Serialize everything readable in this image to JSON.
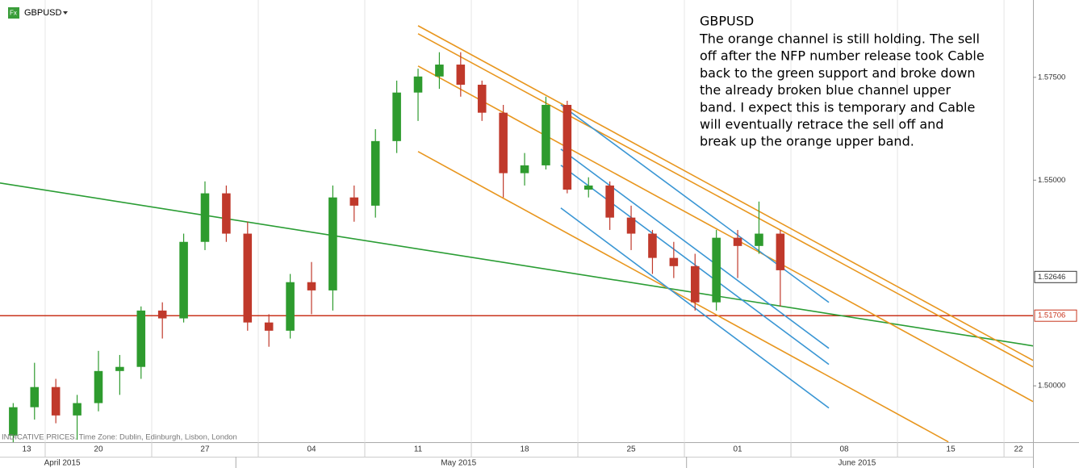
{
  "chart_data": {
    "type": "candlestick",
    "symbol": "GBPUSD",
    "title": "GBPUSD",
    "annotation": [
      "The orange channel is still holding. The sell",
      "off after the NFP number release took Cable",
      "back to the green support and broke down",
      "the already broken blue channel upper",
      "band. I expect this is temporary and Cable",
      "will eventually retrace the sell off and",
      "break up the orange upper band."
    ],
    "footer": "INDICATIVE PRICES. Time Zone: Dublin, Edinburgh, Lisbon, London",
    "x": [
      1,
      2,
      3,
      4,
      5,
      6,
      7,
      8,
      9,
      10,
      11,
      12,
      13,
      14,
      15,
      16,
      17,
      18,
      19,
      20,
      21,
      22,
      23,
      24,
      25,
      26,
      27,
      28,
      29,
      30,
      31,
      32,
      33,
      34,
      35,
      36,
      37
    ],
    "open": [
      1.4879,
      1.4948,
      1.4997,
      1.4928,
      1.4958,
      1.5036,
      1.5046,
      1.5183,
      1.5164,
      1.535,
      1.5468,
      1.537,
      1.5154,
      1.5134,
      1.5252,
      1.5232,
      1.5458,
      1.5438,
      1.5595,
      1.5713,
      1.5752,
      1.5781,
      1.5732,
      1.5664,
      1.5517,
      1.5536,
      1.5683,
      1.5477,
      1.5487,
      1.5409,
      1.537,
      1.5311,
      1.5291,
      1.5203,
      1.536,
      1.534,
      1.537
    ],
    "high": [
      1.4958,
      1.5056,
      1.5017,
      1.4978,
      1.5085,
      1.5075,
      1.5193,
      1.5203,
      1.537,
      1.5497,
      1.5487,
      1.5399,
      1.5174,
      1.5272,
      1.5301,
      1.5487,
      1.5487,
      1.5624,
      1.5742,
      1.5771,
      1.5811,
      1.5811,
      1.5742,
      1.5683,
      1.5566,
      1.5703,
      1.5693,
      1.5507,
      1.5497,
      1.5438,
      1.5379,
      1.535,
      1.5321,
      1.5379,
      1.5379,
      1.5448,
      1.5379
    ],
    "low": [
      1.4863,
      1.4918,
      1.4909,
      1.4869,
      1.4938,
      1.4978,
      1.5017,
      1.5115,
      1.5154,
      1.533,
      1.535,
      1.5134,
      1.5095,
      1.5115,
      1.5174,
      1.5183,
      1.5399,
      1.5409,
      1.5566,
      1.5644,
      1.5722,
      1.5703,
      1.5644,
      1.5458,
      1.5487,
      1.5526,
      1.5468,
      1.5458,
      1.5379,
      1.533,
      1.5272,
      1.5262,
      1.5183,
      1.5183,
      1.5262,
      1.5321,
      1.5193
    ],
    "close": [
      1.4948,
      1.4997,
      1.4928,
      1.4958,
      1.5036,
      1.5046,
      1.5183,
      1.5164,
      1.535,
      1.5468,
      1.537,
      1.5154,
      1.5134,
      1.5252,
      1.5232,
      1.5458,
      1.5438,
      1.5595,
      1.5713,
      1.5752,
      1.5781,
      1.5732,
      1.5664,
      1.5517,
      1.5536,
      1.5683,
      1.5477,
      1.5487,
      1.5409,
      1.537,
      1.5311,
      1.5291,
      1.5203,
      1.536,
      1.534,
      1.537,
      1.5281
    ],
    "up_color": "#2e9b2e",
    "down_color": "#c0392b",
    "xlim": [
      0.38,
      48.86
    ],
    "ylim": [
      1.4863,
      1.5938
    ],
    "xticks": [
      {
        "value": 0,
        "label": "13"
      },
      {
        "value": 5,
        "label": "20"
      },
      {
        "value": 10,
        "label": "27"
      },
      {
        "value": 15,
        "label": "04"
      },
      {
        "value": 20,
        "label": "11"
      },
      {
        "value": 25,
        "label": "18"
      },
      {
        "value": 30,
        "label": "25"
      },
      {
        "value": 35,
        "label": "01"
      },
      {
        "value": 40,
        "label": "08"
      },
      {
        "value": 45,
        "label": "15"
      },
      {
        "value": 50,
        "label": "22"
      }
    ],
    "months": [
      {
        "value": 3.3,
        "label": "April 2015"
      },
      {
        "value": 21.9,
        "label": "May 2015"
      },
      {
        "value": 40.6,
        "label": "June 2015"
      }
    ],
    "month_breaks": [
      11.45,
      32.6
    ],
    "yticks": [
      {
        "value": 1.5,
        "label": "1.50000"
      },
      {
        "value": 1.55,
        "label": "1.55000"
      },
      {
        "value": 1.575,
        "label": "1.57500"
      }
    ],
    "price_labels": [
      {
        "value": 1.52646,
        "label": "1.52646"
      },
      {
        "value": 1.51706,
        "label": "1.51706",
        "color": "#c8341c"
      }
    ],
    "horizontal_line": {
      "value": 1.51706,
      "color": "#c8341c"
    },
    "trendlines": [
      {
        "color": "#2a9d34",
        "x": [
          0.38,
          48.86
        ],
        "y": [
          1.54931,
          1.50971
        ]
      },
      {
        "color": "#e8961e",
        "x": [
          20,
          48.86
        ],
        "y": [
          1.58755,
          1.50618
        ]
      },
      {
        "color": "#e8961e",
        "x": [
          20,
          48.86
        ],
        "y": [
          1.58559,
          1.50461
        ]
      },
      {
        "color": "#e8961e",
        "x": [
          20,
          48.86
        ],
        "y": [
          1.57775,
          1.49618
        ]
      },
      {
        "color": "#e8961e",
        "x": [
          20,
          44.89
        ],
        "y": [
          1.55696,
          1.48637
        ]
      },
      {
        "color": "#3a96d4",
        "x": [
          26.7,
          39.28
        ],
        "y": [
          1.56833,
          1.52029
        ]
      },
      {
        "color": "#3a96d4",
        "x": [
          26.7,
          39.28
        ],
        "y": [
          1.55755,
          1.50912
        ]
      },
      {
        "color": "#3a96d4",
        "x": [
          26.7,
          39.28
        ],
        "y": [
          1.55363,
          1.5052
        ]
      },
      {
        "color": "#3a96d4",
        "x": [
          26.7,
          39.28
        ],
        "y": [
          1.54324,
          1.49461
        ]
      }
    ]
  }
}
